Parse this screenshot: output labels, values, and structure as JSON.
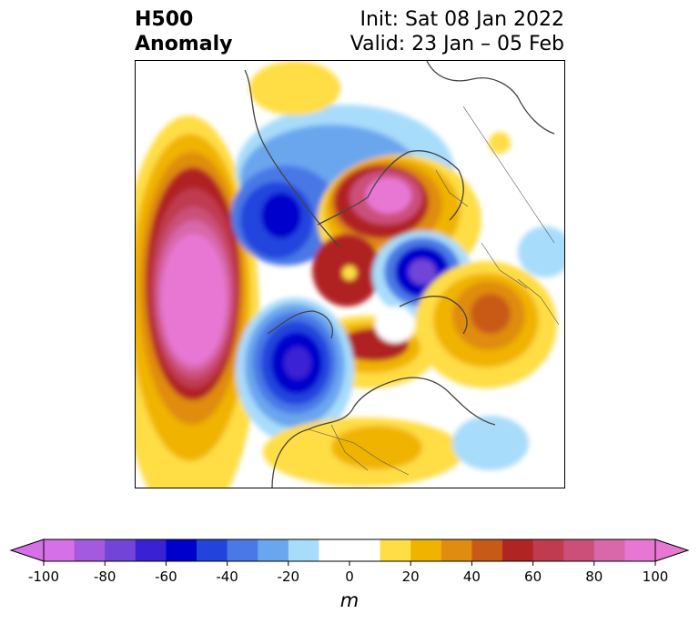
{
  "title": {
    "left_line1": "H500",
    "left_line2": "Anomaly",
    "right_line1": "Init: Sat 08 Jan 2022",
    "right_line2": "Valid: 23 Jan – 05 Feb"
  },
  "colorbar": {
    "levels": [
      -100,
      -90,
      -80,
      -70,
      -60,
      -50,
      -40,
      -30,
      -20,
      -10,
      10,
      20,
      30,
      40,
      50,
      60,
      70,
      80,
      90,
      100
    ],
    "colors": [
      "#d670e8",
      "#a45ae0",
      "#7244d8",
      "#3a22d4",
      "#0000cc",
      "#2244dd",
      "#4a78e6",
      "#6aa6ee",
      "#a8dcfb",
      "#ffffff",
      "#ffdd44",
      "#f0b400",
      "#e08c10",
      "#c85a18",
      "#b02424",
      "#c03a50",
      "#cc4f7a",
      "#d868aa",
      "#e877d4"
    ],
    "under_color": "#d670e8",
    "over_color": "#e877d4",
    "tick_labels": [
      "-100",
      "-80",
      "-60",
      "-40",
      "-20",
      "0",
      "20",
      "40",
      "60",
      "80",
      "100"
    ],
    "unit": "m"
  }
}
